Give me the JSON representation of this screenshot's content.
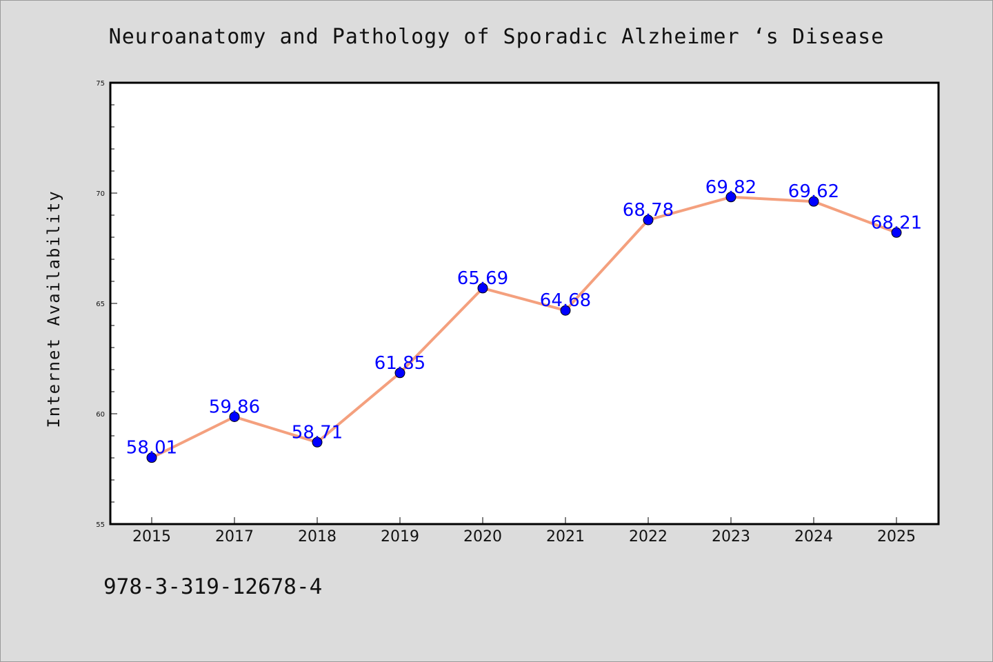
{
  "chart_data": {
    "type": "line",
    "title": "Neuroanatomy and Pathology of Sporadic Alzheimer ‘s Disease",
    "xlabel": "",
    "ylabel": "Internet Availability",
    "categories": [
      "2015",
      "2017",
      "2018",
      "2019",
      "2020",
      "2021",
      "2022",
      "2023",
      "2024",
      "2025"
    ],
    "series": [
      {
        "values": [
          58.01,
          59.86,
          58.71,
          61.85,
          65.69,
          64.68,
          68.78,
          69.82,
          69.62,
          68.21
        ],
        "labels": [
          "58.01",
          "59.86",
          "58.71",
          "61.85",
          "65.69",
          "64.68",
          "68.78",
          "69.82",
          "69.62",
          "68.21"
        ]
      }
    ],
    "ylim": [
      55,
      75
    ],
    "yticks": [
      "55",
      "60",
      "65",
      "70",
      "75"
    ],
    "grid": false,
    "line_color": "#f4a07e",
    "marker_color": "#0000ff",
    "label_color": "#0000ff"
  },
  "footer": {
    "isbn": "978-3-319-12678-4"
  }
}
